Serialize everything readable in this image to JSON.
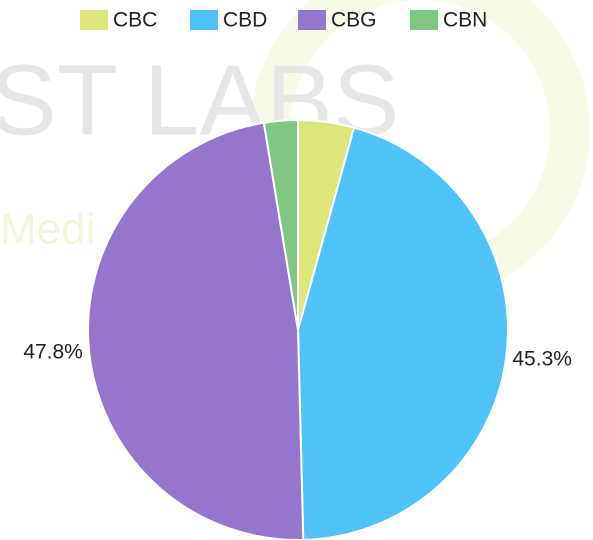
{
  "chart_data": {
    "type": "pie",
    "categories": [
      "CBC",
      "CBD",
      "CBG",
      "CBN"
    ],
    "values": [
      4.3,
      45.3,
      47.8,
      2.6
    ],
    "value_labels": [
      null,
      "45.3%",
      "47.8%",
      null
    ],
    "colors": [
      "#dde67a",
      "#4fc3f7",
      "#9575cd",
      "#81c784"
    ],
    "legend": "top",
    "watermark": [
      "ST LABS",
      "Medi"
    ]
  }
}
